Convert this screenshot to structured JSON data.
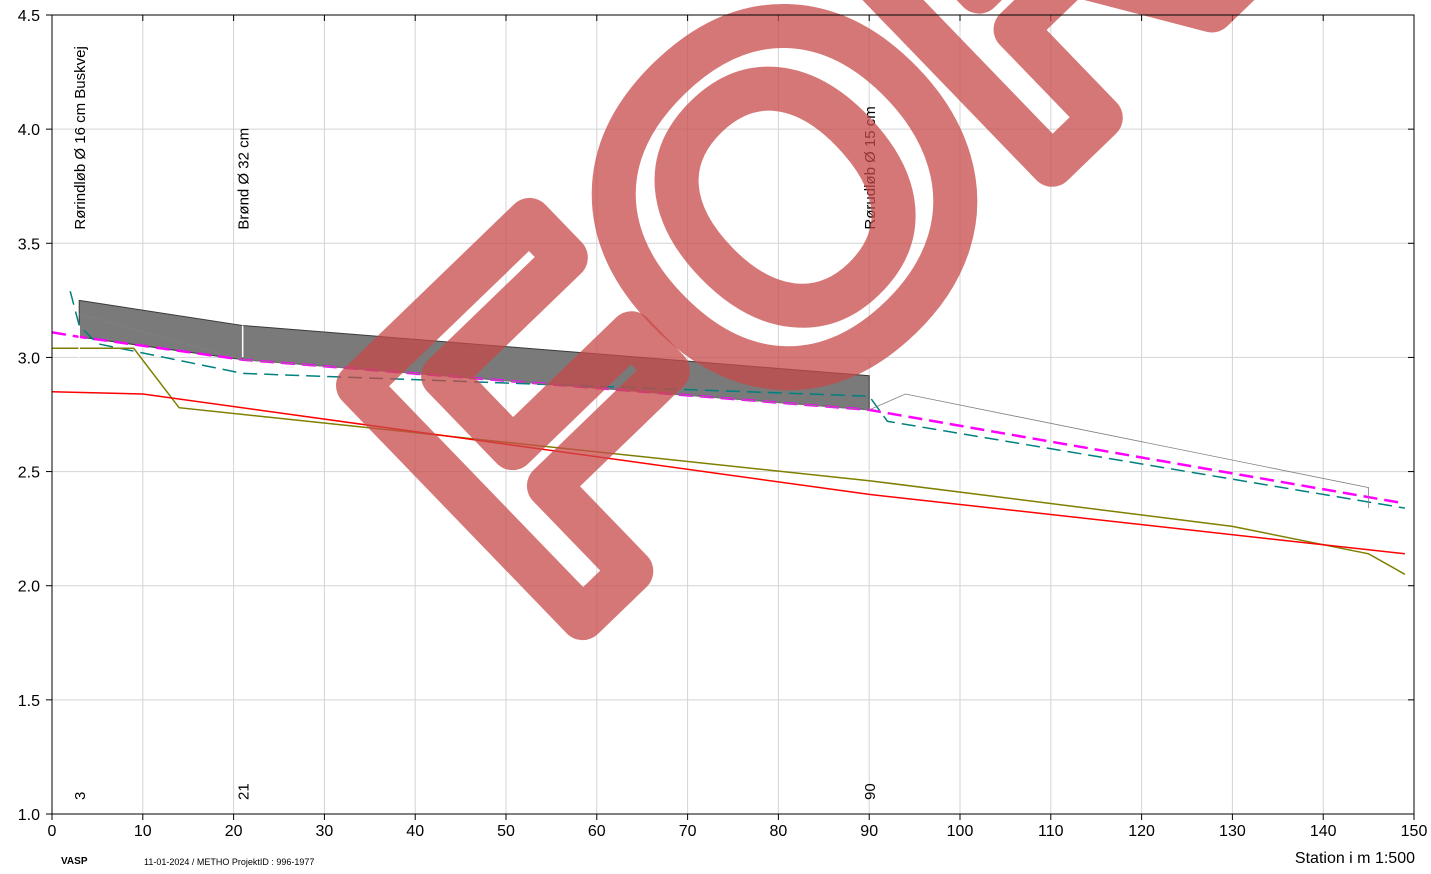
{
  "footer": {
    "brand": "VASP",
    "meta": "11-01-2024 / METHO   ProjektID : 996-1977",
    "station_label": "Station i m  1:500"
  },
  "watermark": {
    "text": "FORSLAG",
    "color": "#c84a4a"
  },
  "chart_data": {
    "type": "line",
    "xlim": [
      0,
      150
    ],
    "ylim": [
      1.0,
      4.5
    ],
    "x_ticks": [
      0,
      10,
      20,
      30,
      40,
      50,
      60,
      70,
      80,
      90,
      100,
      110,
      120,
      130,
      140,
      150
    ],
    "y_ticks": [
      1.0,
      1.5,
      2.0,
      2.5,
      3.0,
      3.5,
      4.0,
      4.5
    ],
    "y_tick_labels": [
      "1.0",
      "1.5",
      "2.0",
      "2.5",
      "3.0",
      "3.5",
      "4.0",
      "4.5"
    ],
    "grid": true,
    "features": [
      {
        "x": 3,
        "label": "Rørindløb Ø 16 cm Buskvej",
        "station": "3"
      },
      {
        "x": 21,
        "label": "Brønd Ø 32 cm",
        "station": "21"
      },
      {
        "x": 90,
        "label": "Rørudløb Ø 15 cm",
        "station": "90"
      }
    ],
    "pipe_segments": [
      {
        "top": [
          [
            3,
            3.25
          ],
          [
            21,
            3.14
          ]
        ],
        "bottom": [
          [
            3,
            3.09
          ],
          [
            21,
            2.99
          ]
        ]
      },
      {
        "top": [
          [
            21,
            3.14
          ],
          [
            90,
            2.92
          ]
        ],
        "bottom": [
          [
            21,
            2.99
          ],
          [
            90,
            2.77
          ]
        ]
      }
    ],
    "series": [
      {
        "color": "#ff00ff",
        "style": "dashed",
        "points": [
          [
            0,
            3.11
          ],
          [
            3,
            3.09
          ],
          [
            21,
            2.99
          ],
          [
            90,
            2.77
          ],
          [
            149,
            2.36
          ]
        ]
      },
      {
        "color": "#00807f",
        "style": "dashed",
        "points": [
          [
            2,
            3.29
          ],
          [
            3,
            3.14
          ],
          [
            5,
            3.06
          ],
          [
            21,
            2.93
          ],
          [
            90,
            2.83
          ],
          [
            92,
            2.72
          ],
          [
            149,
            2.34
          ]
        ]
      },
      {
        "color": "#7f7f00",
        "style": "solid",
        "points": [
          [
            0,
            3.04
          ],
          [
            9,
            3.04
          ],
          [
            14,
            2.78
          ],
          [
            90,
            2.46
          ],
          [
            130,
            2.26
          ],
          [
            145,
            2.14
          ],
          [
            149,
            2.05
          ]
        ]
      },
      {
        "color": "#ff0000",
        "style": "solid",
        "points": [
          [
            0,
            2.85
          ],
          [
            10,
            2.84
          ],
          [
            90,
            2.4
          ],
          [
            149,
            2.14
          ]
        ]
      },
      {
        "color": "#808080",
        "style": "thin",
        "points": [
          [
            3,
            3.19
          ],
          [
            21,
            2.99
          ],
          [
            90,
            2.77
          ],
          [
            94,
            2.84
          ],
          [
            145,
            2.43
          ],
          [
            145,
            2.34
          ]
        ]
      }
    ]
  }
}
